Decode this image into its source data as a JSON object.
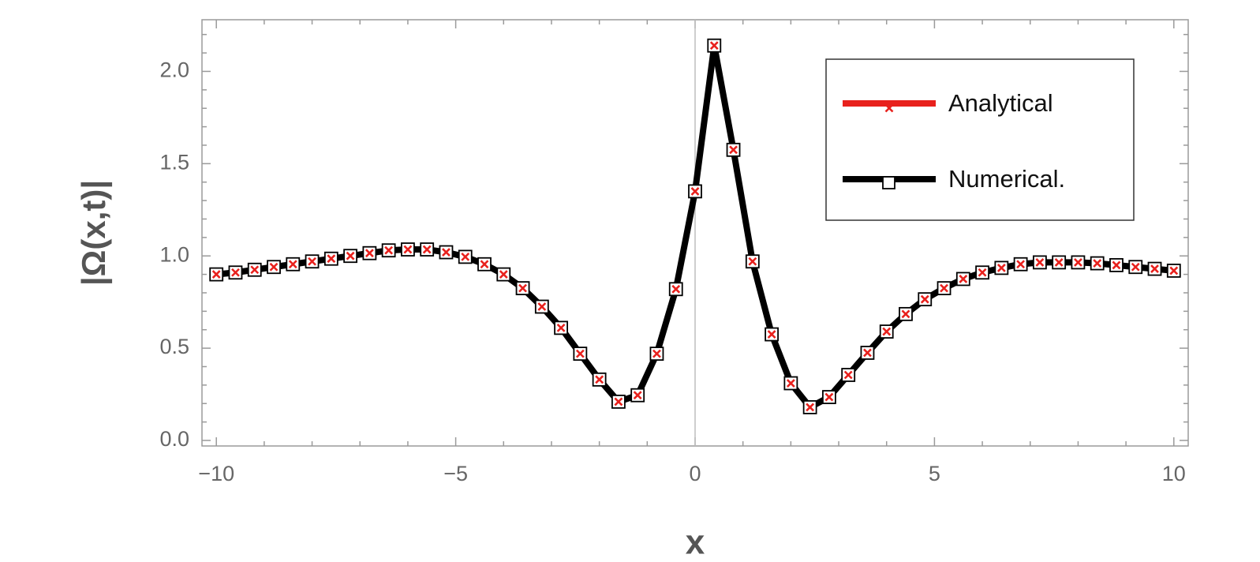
{
  "chart_data": {
    "type": "line",
    "title": "",
    "xlabel": "x",
    "ylabel": "|Ω(x,t)|",
    "xlim": [
      -10.3,
      10.3
    ],
    "ylim": [
      -0.03,
      2.28
    ],
    "grid": false,
    "legend_position": "top-right",
    "x_ticks": [
      -10,
      -5,
      0,
      5,
      10
    ],
    "x_tick_labels": [
      "−10",
      "−5",
      "0",
      "5",
      "10"
    ],
    "y_ticks": [
      0.0,
      0.5,
      1.0,
      1.5,
      2.0
    ],
    "y_tick_labels": [
      "0.0",
      "0.5",
      "1.0",
      "1.5",
      "2.0"
    ],
    "x": [
      -10.0,
      -9.6,
      -9.2,
      -8.8,
      -8.4,
      -8.0,
      -7.6,
      -7.2,
      -6.8,
      -6.4,
      -6.0,
      -5.6,
      -5.2,
      -4.8,
      -4.4,
      -4.0,
      -3.6,
      -3.2,
      -2.8,
      -2.4,
      -2.0,
      -1.6,
      -1.2,
      -0.8,
      -0.4,
      0.0,
      0.4,
      0.8,
      1.2,
      1.6,
      2.0,
      2.4,
      2.8,
      3.2,
      3.6,
      4.0,
      4.4,
      4.8,
      5.2,
      5.6,
      6.0,
      6.4,
      6.8,
      7.2,
      7.6,
      8.0,
      8.4,
      8.8,
      9.2,
      9.6,
      10.0
    ],
    "series": [
      {
        "name": "Analytical",
        "color": "#e8211d",
        "marker": "x",
        "values": [
          0.9,
          0.91,
          0.925,
          0.94,
          0.955,
          0.97,
          0.985,
          1.0,
          1.015,
          1.03,
          1.035,
          1.035,
          1.02,
          0.995,
          0.955,
          0.9,
          0.825,
          0.725,
          0.61,
          0.47,
          0.33,
          0.21,
          0.245,
          0.47,
          0.82,
          1.35,
          2.14,
          1.575,
          0.97,
          0.575,
          0.31,
          0.18,
          0.235,
          0.355,
          0.475,
          0.59,
          0.685,
          0.765,
          0.825,
          0.875,
          0.91,
          0.935,
          0.955,
          0.965,
          0.965,
          0.965,
          0.96,
          0.95,
          0.94,
          0.93,
          0.92
        ]
      },
      {
        "name": "Numerical.",
        "color": "#000000",
        "marker": "square",
        "values": [
          0.9,
          0.91,
          0.925,
          0.94,
          0.955,
          0.97,
          0.985,
          1.0,
          1.015,
          1.03,
          1.035,
          1.035,
          1.02,
          0.995,
          0.955,
          0.9,
          0.825,
          0.725,
          0.61,
          0.47,
          0.33,
          0.21,
          0.245,
          0.47,
          0.82,
          1.35,
          2.14,
          1.575,
          0.97,
          0.575,
          0.31,
          0.18,
          0.235,
          0.355,
          0.475,
          0.59,
          0.685,
          0.765,
          0.825,
          0.875,
          0.91,
          0.935,
          0.955,
          0.965,
          0.965,
          0.965,
          0.96,
          0.95,
          0.94,
          0.93,
          0.92
        ]
      }
    ]
  }
}
